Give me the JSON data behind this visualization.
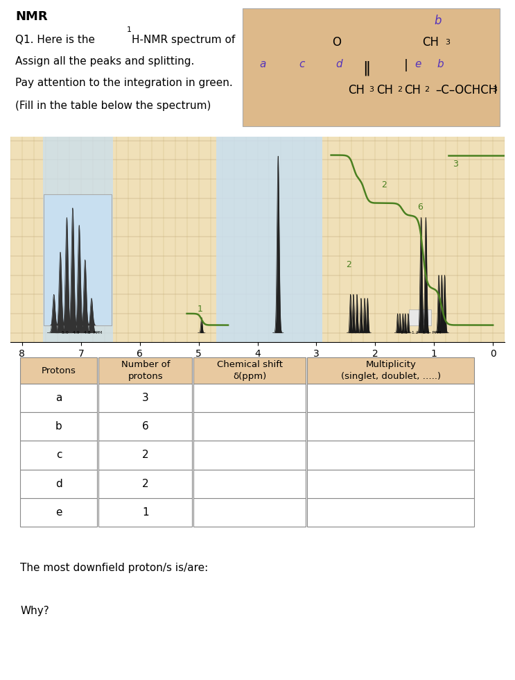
{
  "title": "NMR",
  "q1_line1": "Q1. Here is the ",
  "q1_super": "1",
  "q1_line2": "H-NMR spectrum of",
  "line2": "Assign all the peaks and splitting.",
  "line3": "Pay attention to the integration in green.",
  "line4": "(Fill in the table below the spectrum)",
  "molecule_bg": "#ddb98a",
  "table_header_bg": "#e8c9a0",
  "col_headers": [
    "Protons",
    "Number of\nprotons",
    "Chemical shift\nδ(ppm)",
    "Multiplicity\n(singlet, doublet, …..)"
  ],
  "table_rows": [
    {
      "proton": "a",
      "num": "3"
    },
    {
      "proton": "b",
      "num": "6"
    },
    {
      "proton": "c",
      "num": "2"
    },
    {
      "proton": "d",
      "num": "2"
    },
    {
      "proton": "e",
      "num": "1"
    }
  ],
  "bottom_text1": "The most downfield proton/s is/are:",
  "bottom_text2": "Why?",
  "spectrum_bg": "#f0e0b8",
  "spectrum_bg_blue": "#c8dff0",
  "grid_color_h": "#b8a070",
  "grid_color_v": "#d0b880",
  "int_color": "#4a8020",
  "peak_color": "#1a1a1a",
  "label_color": "#5533bb"
}
